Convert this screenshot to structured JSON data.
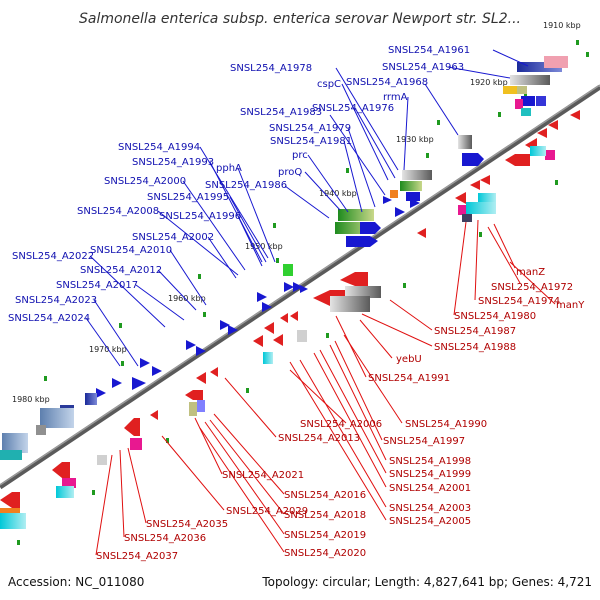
{
  "title": "Salmonella enterica subsp. enterica serovar Newport str. SL2...",
  "footer": {
    "accession": "Accession: NC_011080",
    "summary": "Topology: circular; Length: 4,827,641 bp; Genes: 4,721"
  },
  "kbp_ticks": [
    "1910 kbp",
    "1920 kbp",
    "1930 kbp",
    "1940 kbp",
    "1950 kbp",
    "1960 kbp",
    "1970 kbp",
    "1980 kbp"
  ],
  "labels_upper": [
    "SNSL254_A1961",
    "SNSL254_A1963",
    "SNSL254_A1978",
    "cspC",
    "SNSL254_A1968",
    "rrmA",
    "SNSL254_A1976",
    "SNSL254_A1983",
    "SNSL254_A1979",
    "SNSL254_A1981",
    "SNSL254_A1994",
    "prc",
    "SNSL254_A1993",
    "pphA",
    "proQ",
    "SNSL254_A2000",
    "SNSL254_A1986",
    "SNSL254_A1995",
    "SNSL254_A2008",
    "SNSL254_A1996",
    "SNSL254_A2002",
    "SNSL254_A2010",
    "SNSL254_A2022",
    "SNSL254_A2012",
    "SNSL254_A2017",
    "SNSL254_A2023",
    "SNSL254_A2024"
  ],
  "labels_lower": [
    "manZ",
    "SNSL254_A1972",
    "SNSL254_A1974",
    "manY",
    "SNSL254_A1980",
    "SNSL254_A1987",
    "SNSL254_A1988",
    "yebU",
    "SNSL254_A1991",
    "SNSL254_A1990",
    "SNSL254_A2006",
    "SNSL254_A1997",
    "SNSL254_A2013",
    "SNSL254_A1998",
    "SNSL254_A1999",
    "SNSL254_A2001",
    "SNSL254_A2003",
    "SNSL254_A2005",
    "SNSL254_A2021",
    "SNSL254_A2016",
    "SNSL254_A2029",
    "SNSL254_A2018",
    "SNSL254_A2035",
    "SNSL254_A2019",
    "SNSL254_A2036",
    "SNSL254_A2020",
    "SNSL254_A2037"
  ]
}
